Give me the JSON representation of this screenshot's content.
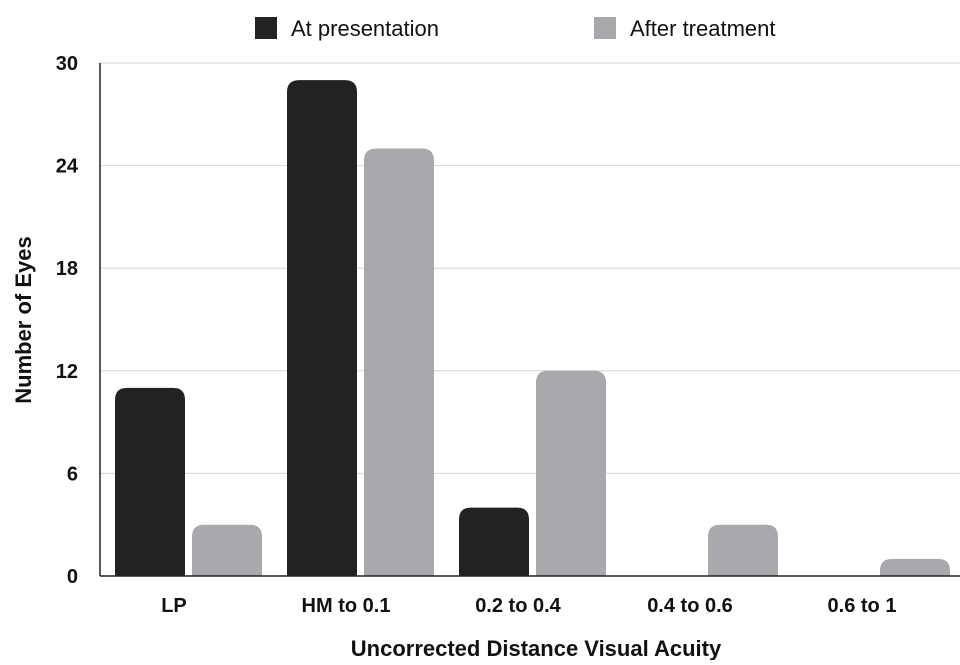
{
  "chart_data": {
    "type": "bar",
    "categories": [
      "LP",
      "HM to 0.1",
      "0.2 to 0.4",
      "0.4 to 0.6",
      "0.6 to 1"
    ],
    "series": [
      {
        "name": "At presentation",
        "color": "#222222",
        "values": [
          11,
          29,
          4,
          0,
          0
        ]
      },
      {
        "name": "After treatment",
        "color": "#a7a9ac",
        "values": [
          3,
          25,
          12,
          3,
          1
        ]
      }
    ],
    "title": "",
    "xlabel": "Uncorrected Distance Visual Acuity",
    "ylabel": "Number of Eyes",
    "ylim": [
      0,
      30
    ],
    "yticks": [
      0,
      6,
      12,
      18,
      24,
      30
    ],
    "grid": true,
    "legend_position": "top-center"
  }
}
